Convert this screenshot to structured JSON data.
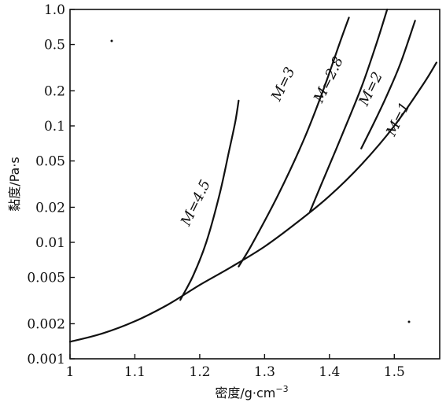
{
  "chart_data": {
    "type": "line",
    "title": "",
    "xlabel": "密度/g·cm",
    "xlabel_sup": "−3",
    "ylabel": "黏度/Pa·s",
    "xlim": [
      1.0,
      1.57
    ],
    "ylim": [
      0.001,
      1.0
    ],
    "yscale": "log",
    "grid": false,
    "x_ticks": [
      1.0,
      1.1,
      1.2,
      1.3,
      1.4,
      1.5
    ],
    "x_tick_labels": [
      "1",
      "1.1",
      "1.2",
      "1.3",
      "1.4",
      "1.5"
    ],
    "y_ticks": [
      0.001,
      0.002,
      0.005,
      0.01,
      0.02,
      0.05,
      0.1,
      0.2,
      0.5,
      1.0
    ],
    "y_tick_labels": [
      "0.001",
      "0.002",
      "0.005",
      "0.01",
      "0.02",
      "0.05",
      "0.1",
      "0.2",
      "0.5",
      "1.0"
    ],
    "series": [
      {
        "name": "M=1",
        "label_at": [
          1.512,
          0.11
        ],
        "points": [
          [
            1.0,
            0.0014
          ],
          [
            1.05,
            0.00165
          ],
          [
            1.1,
            0.0021
          ],
          [
            1.15,
            0.0029
          ],
          [
            1.2,
            0.0043
          ],
          [
            1.25,
            0.0062
          ],
          [
            1.3,
            0.0092
          ],
          [
            1.35,
            0.0148
          ],
          [
            1.4,
            0.025
          ],
          [
            1.45,
            0.047
          ],
          [
            1.5,
            0.1
          ],
          [
            1.545,
            0.23
          ],
          [
            1.565,
            0.35
          ]
        ]
      },
      {
        "name": "M=2",
        "label_at": [
          1.47,
          0.2
        ],
        "points": [
          [
            1.449,
            0.064
          ],
          [
            1.47,
            0.11
          ],
          [
            1.49,
            0.19
          ],
          [
            1.51,
            0.35
          ],
          [
            1.532,
            0.8
          ]
        ]
      },
      {
        "name": "M=2.8",
        "label_at": [
          1.405,
          0.24
        ],
        "points": [
          [
            1.37,
            0.0184
          ],
          [
            1.39,
            0.034
          ],
          [
            1.42,
            0.085
          ],
          [
            1.45,
            0.22
          ],
          [
            1.472,
            0.5
          ],
          [
            1.489,
            1.0
          ]
        ]
      },
      {
        "name": "M=3",
        "label_at": [
          1.335,
          0.22
        ],
        "points": [
          [
            1.26,
            0.0062
          ],
          [
            1.28,
            0.0095
          ],
          [
            1.32,
            0.025
          ],
          [
            1.36,
            0.075
          ],
          [
            1.39,
            0.2
          ],
          [
            1.415,
            0.5
          ],
          [
            1.43,
            0.85
          ]
        ]
      },
      {
        "name": "M=4.5",
        "label_at": [
          1.2,
          0.021
        ],
        "points": [
          [
            1.17,
            0.0032
          ],
          [
            1.19,
            0.0052
          ],
          [
            1.21,
            0.01
          ],
          [
            1.23,
            0.025
          ],
          [
            1.245,
            0.06
          ],
          [
            1.255,
            0.11
          ],
          [
            1.26,
            0.165
          ]
        ]
      }
    ]
  }
}
